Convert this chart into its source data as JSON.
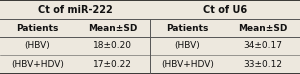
{
  "title_row": [
    "Ct of miR-222",
    "Ct of U6"
  ],
  "header_row": [
    "Patients",
    "Mean±SD",
    "Patients",
    "Mean±SD"
  ],
  "data_rows": [
    [
      "(HBV)",
      "18±0.20",
      "(HBV)",
      "34±0.17"
    ],
    [
      "(HBV+HDV)",
      "17±0.22",
      "(HBV+HDV)",
      "33±0.12"
    ]
  ],
  "bg_color": "#ede8de",
  "cell_bg": "#ede8de",
  "border_color_outer": "#1a1a1a",
  "border_color_inner": "#555555",
  "text_color": "#111111",
  "font_size_title": 7.0,
  "font_size_header": 6.5,
  "font_size_data": 6.5,
  "figsize": [
    3.0,
    0.74
  ],
  "dpi": 100,
  "col_splits": [
    0.0,
    0.25,
    0.5,
    0.75,
    1.0
  ],
  "row_splits": [
    0.0,
    0.26,
    0.5,
    0.74,
    1.0
  ]
}
